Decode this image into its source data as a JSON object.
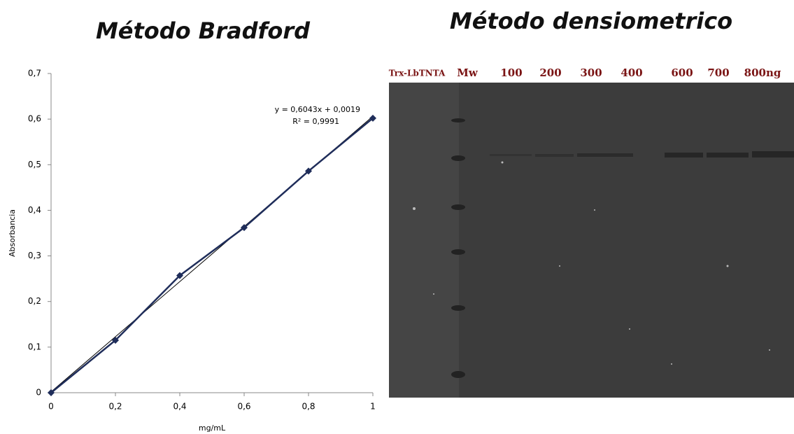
{
  "chart_data": {
    "type": "scatter",
    "title": "Método Bradford",
    "xlabel": "mg/mL",
    "ylabel": "Absorbancia",
    "x": [
      0,
      0.2,
      0.4,
      0.6,
      0.8,
      1
    ],
    "values": [
      0,
      0.115,
      0.257,
      0.362,
      0.486,
      0.602
    ],
    "color": "#1f2d5a",
    "xlim": [
      0,
      1
    ],
    "ylim": [
      0,
      0.7
    ],
    "xticks": [
      0,
      {
        "value": 0.2,
        "label": "0,2"
      },
      {
        "value": 0.4,
        "label": "0,4"
      },
      {
        "value": 0.6,
        "label": "0,6"
      },
      {
        "value": 0.8,
        "label": "0,8"
      },
      1
    ],
    "yticks": [
      0,
      {
        "value": 0.1,
        "label": "0,1"
      },
      {
        "value": 0.2,
        "label": "0,2"
      },
      {
        "value": 0.3,
        "label": "0,3"
      },
      {
        "value": 0.4,
        "label": "0,4"
      },
      {
        "value": 0.5,
        "label": "0,5"
      },
      {
        "value": 0.6,
        "label": "0,6"
      },
      {
        "value": 0.7,
        "label": "0,7"
      }
    ],
    "trendline": {
      "slope": 0.6043,
      "intercept": 0.0019,
      "label": "y = 0,6043x + 0,0019"
    },
    "r2_label": "R² = 0,9991"
  },
  "gel": {
    "title": "Método densiometrico",
    "lane_labels": [
      "Trx-LbTNTA",
      "Mw",
      "100",
      "200",
      "300",
      "400",
      "600",
      "700",
      "800ng"
    ]
  }
}
